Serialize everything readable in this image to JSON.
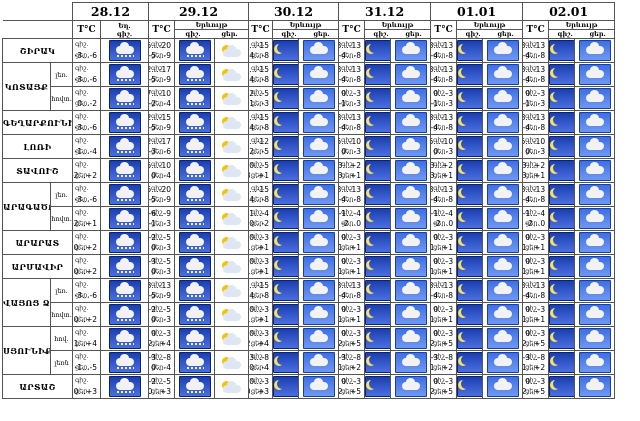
{
  "dates": [
    "28.12",
    "29.12",
    "30.12",
    "31.12",
    "01.01",
    "02.01"
  ],
  "subheaders": {
    "temp": "T°C",
    "weather": "Եղ.",
    "weather2": "Երևույթ",
    "night": "գիշ.",
    "day": "ցեր."
  },
  "regions": [
    {
      "name": "ՇԻՐԱԿ",
      "sub": "",
      "rows": [
        [
          "-3…-6",
          "-15…-20|-5…-9",
          "-10…-15|-4…-8",
          "-8…-13|-4…-8",
          "-8…-13|-4…-8",
          "-8…-13|-4…-8"
        ]
      ]
    },
    {
      "name": "ԿՈՏԱՅՔ",
      "sub": "լեռ.",
      "rows": [
        [
          "-3…-6",
          "-12…-17|-5…-9",
          "-10…-15|-4…-8",
          "-8…-13|-4…-8",
          "-8…-13|-4…-8",
          "-8…-13|-4…-8"
        ]
      ]
    },
    {
      "name": "",
      "sub": "հովտ.",
      "rows": [
        [
          "0…-2",
          "-7…-10|-2…-4",
          "-2…-5|-1…-3",
          "0…-3|-1…-3",
          "0…-3|-1…-3",
          "0…-3|-1…-3"
        ]
      ]
    },
    {
      "name": "ԳԵՂԱՐՔՈՒՆԻՔ",
      "sub": "",
      "rows": [
        [
          "-3…-6",
          "-12…-15|-5…-9",
          "-10…-15|-4…-8",
          "-8…-13|-4…-8",
          "-8…-13|-4…-8",
          "-8…-13|-4…-8"
        ]
      ]
    },
    {
      "name": "ԼՈՌԻ",
      "sub": "",
      "rows": [
        [
          "-1…-4",
          "-12…-17|-3…-6",
          "-7…-12|-2…-5",
          "-5…-10|0…-3",
          "-5…-10|0…-3",
          "-5…-10|0…-3"
        ]
      ]
    },
    {
      "name": "ՏԱՎՈՒՇ",
      "sub": "",
      "rows": [
        [
          "-2…+2",
          "-5…-10|0…-4",
          "0…-5|-3…+1",
          "-3…+2|-3…+1",
          "-3…+2|-3…+1",
          "-3…+2|-3…+1"
        ]
      ]
    },
    {
      "name": "ԱՐԱԳԱԾՈՏՆ",
      "sub": "լեռ.",
      "rows": [
        [
          "-3…-6",
          "-15…-20|-5…-9",
          "-10…-15|-4…-8",
          "-8…-13|-4…-8",
          "-8…-13|-4…-8",
          "-8…-13|-4…-8"
        ]
      ]
    },
    {
      "name": "",
      "sub": "հովտ.",
      "rows": [
        [
          "-2…+1",
          "-6…-9|-1…-3",
          "-1…-4|0…-2",
          "-1…-4|-2…0",
          "-1…-4|-2…0",
          "-1…-4|-2…0"
        ]
      ]
    },
    {
      "name": "ԱՐԱՐԱՏ",
      "sub": "",
      "rows": [
        [
          "0…+2",
          "-2…-5|0…-3",
          "0…-3|-1…+1",
          "0…-3|-1…+1",
          "0…-3|-1…+1",
          "0…-3|-1…+1"
        ]
      ]
    },
    {
      "name": "ԱՐՄԱՎԻՐ",
      "sub": "",
      "rows": [
        [
          "0…+2",
          "-3…-5|0…-3",
          "0…-3|-1…+1",
          "0…-3|-1…+1",
          "0…-3|-1…+1",
          "0…-3|-1…+1"
        ]
      ]
    },
    {
      "name": "ՎԱՅՈՑ ՁՈՐ",
      "sub": "լեռ.",
      "rows": [
        [
          "-3…-6",
          "-8…-13|-5…-9",
          "-10…-15|-4…-8",
          "-8…-13|-4…-8",
          "-8…-13|-4…-8",
          "-8…-13|-4…-8"
        ]
      ]
    },
    {
      "name": "",
      "sub": "հովտ.",
      "rows": [
        [
          "0…+2",
          "-2…-5|0…-3",
          "0…-3|-1…+1",
          "0…-3|-1…+1",
          "0…-3|-1…+1",
          "0…-3|-1…+1"
        ]
      ]
    },
    {
      "name": "ՍՅՈՒՆԻՔ",
      "sub": "հով.",
      "rows": [
        [
          "+1…+4",
          "0…-3|+2…+4",
          "0…-3|+2…+4",
          "0…-3|+2…+5",
          "0…-3|+2…+5",
          "0…-3|+2…+5"
        ]
      ]
    },
    {
      "name": "",
      "sub": "լեռն",
      "rows": [
        [
          "-1…-5",
          "-3…-8|0…-4",
          "-3…-8|0…-4",
          "-3…-8|-1…+2",
          "-3…-8|-1…+2",
          "-3…-8|-1…+2"
        ]
      ]
    },
    {
      "name": "ԱՐՏԱՇ",
      "sub": "",
      "rows": [
        [
          "0…+3",
          "-2…-5|0…+3",
          "0…-3|0…+3",
          "0…-3|+2…+5",
          "0…-3|+2…+5",
          "0…-3|+2…+5"
        ]
      ]
    }
  ]
}
